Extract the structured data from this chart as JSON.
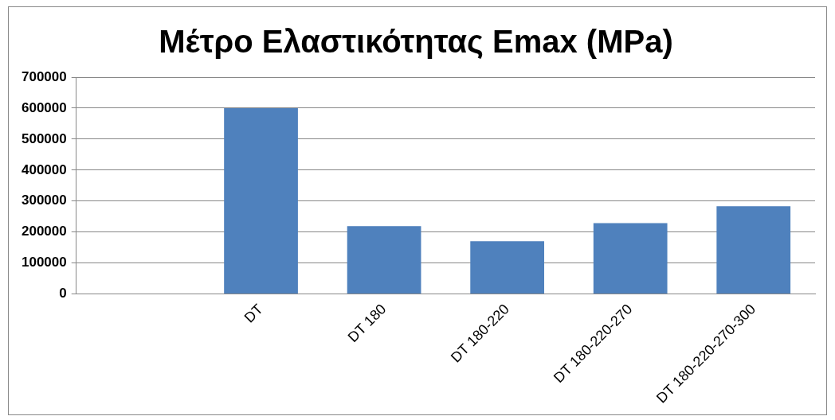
{
  "chart_data": {
    "type": "bar",
    "title": "Μέτρο Ελαστικότητας Emax (MPa)",
    "categories": [
      null,
      "DT",
      "DT 180",
      "DT 180-220",
      "DT 180-220-270",
      "DT 180-220-270-300"
    ],
    "values": [
      null,
      600000,
      219000,
      170000,
      229000,
      283000
    ],
    "color": "#4f81bd",
    "ylim": [
      0,
      700000
    ],
    "yticks": [
      0,
      100000,
      200000,
      300000,
      400000,
      500000,
      600000,
      700000
    ],
    "grid": "y",
    "legend": false
  }
}
